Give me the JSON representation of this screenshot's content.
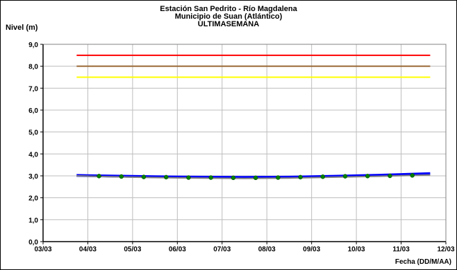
{
  "chart_data": {
    "type": "line",
    "title_lines": [
      "Estación San Pedrito - Río Magdalena",
      "Municipio de Suan (Atlántico)",
      "ULTIMASEMANA"
    ],
    "ylabel": "Nivel (m)",
    "xlabel": "Fecha (DD/M/AA)",
    "x_ticks": [
      "03/03",
      "04/03",
      "05/03",
      "06/03",
      "07/03",
      "08/03",
      "09/03",
      "10/03",
      "11/03",
      "12/03"
    ],
    "y_ticks": [
      "0,0",
      "1,0",
      "2,0",
      "3,0",
      "4,0",
      "5,0",
      "6,0",
      "7,0",
      "8,0",
      "9,0"
    ],
    "ylim": [
      0,
      9
    ],
    "xlim": [
      0,
      9
    ],
    "grid": true,
    "threshold_lines": [
      {
        "value": 8.5,
        "color": "#ff0000",
        "x_start": 0.75,
        "x_end": 8.65
      },
      {
        "value": 8.0,
        "color": "#996633",
        "x_start": 0.75,
        "x_end": 8.65
      },
      {
        "value": 7.5,
        "color": "#ffff00",
        "x_start": 0.75,
        "x_end": 8.65
      }
    ],
    "series": [
      {
        "color": "#0000ff",
        "style": "thick-line",
        "x": [
          0.75,
          1.5,
          2.5,
          3.5,
          4.5,
          5.5,
          6.5,
          7.5,
          8.0,
          8.65
        ],
        "y": [
          3.02,
          2.99,
          2.96,
          2.94,
          2.93,
          2.94,
          2.98,
          3.03,
          3.06,
          3.1
        ]
      },
      {
        "color": "#808080",
        "style": "line",
        "x": [
          0.75,
          1.5,
          2.5,
          3.5,
          4.5,
          5.5,
          6.5,
          7.5,
          8.0,
          8.65
        ],
        "y": [
          3.0,
          2.96,
          2.92,
          2.9,
          2.88,
          2.9,
          2.94,
          2.98,
          3.01,
          3.04
        ]
      },
      {
        "color": "#008000",
        "style": "points",
        "x": [
          1.25,
          1.75,
          2.25,
          2.75,
          3.25,
          3.75,
          4.25,
          4.75,
          5.25,
          5.75,
          6.25,
          6.75,
          7.25,
          7.75,
          8.25
        ],
        "y": [
          2.99,
          2.97,
          2.95,
          2.94,
          2.92,
          2.92,
          2.91,
          2.91,
          2.92,
          2.94,
          2.96,
          2.98,
          2.99,
          3.0,
          3.02
        ]
      }
    ]
  }
}
